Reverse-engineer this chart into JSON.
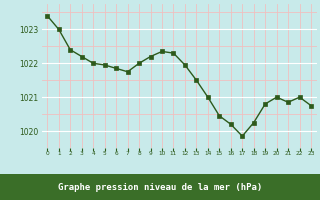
{
  "x": [
    0,
    1,
    2,
    3,
    4,
    5,
    6,
    7,
    8,
    9,
    10,
    11,
    12,
    13,
    14,
    15,
    16,
    17,
    18,
    19,
    20,
    21,
    22,
    23
  ],
  "y": [
    1023.4,
    1023.0,
    1022.4,
    1022.2,
    1022.0,
    1021.95,
    1021.85,
    1021.75,
    1022.0,
    1022.2,
    1022.35,
    1022.3,
    1021.95,
    1021.5,
    1021.0,
    1020.45,
    1020.2,
    1019.85,
    1020.25,
    1020.8,
    1021.0,
    1020.85,
    1021.0,
    1020.75
  ],
  "line_color": "#2d5a1b",
  "marker_color": "#2d5a1b",
  "bg_color": "#c8eaea",
  "grid_minor_color": "#f0c0c0",
  "grid_major_color": "#ffffff",
  "footer_bg": "#3a6e28",
  "footer_text": "Graphe pression niveau de la mer (hPa)",
  "footer_text_color": "#ffffff",
  "tick_label_color": "#2d5a1b",
  "ylim": [
    1019.5,
    1023.75
  ],
  "yticks": [
    1020,
    1021,
    1022,
    1023
  ],
  "xtick_labels": [
    "0",
    "1",
    "2",
    "3",
    "4",
    "5",
    "6",
    "7",
    "8",
    "9",
    "10",
    "11",
    "12",
    "13",
    "14",
    "15",
    "16",
    "17",
    "18",
    "19",
    "20",
    "21",
    "22",
    "23"
  ]
}
